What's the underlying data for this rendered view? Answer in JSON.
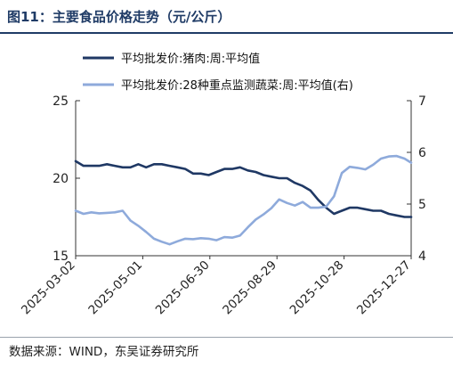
{
  "title": "图11：主要食品价格走势（元/公斤）",
  "source": "数据来源：WIND，东吴证券研究所",
  "chart_data": {
    "type": "line",
    "x_ticks": [
      "2025-03-02",
      "2025-05-01",
      "2025-06-30",
      "2025-08-29",
      "2025-10-28",
      "2025-12-27"
    ],
    "x_range": [
      "2025-03-02",
      "2025-12-27"
    ],
    "ylim": [
      15,
      25
    ],
    "yticks": [
      15,
      20,
      25
    ],
    "y2lim": [
      4,
      7
    ],
    "y2ticks": [
      4,
      5,
      6,
      7
    ],
    "legend_position": "top",
    "grid": false,
    "series": [
      {
        "name": "平均批发价:猪肉:周:平均值",
        "axis": "left",
        "color": "#1f3864",
        "x": [
          "2025-03-02",
          "2025-03-09",
          "2025-03-16",
          "2025-03-23",
          "2025-03-30",
          "2025-04-06",
          "2025-04-13",
          "2025-04-20",
          "2025-04-27",
          "2025-05-04",
          "2025-05-11",
          "2025-05-18",
          "2025-05-25",
          "2025-06-01",
          "2025-06-08",
          "2025-06-15",
          "2025-06-22",
          "2025-06-29",
          "2025-07-06",
          "2025-07-13",
          "2025-07-20",
          "2025-07-27",
          "2025-08-03",
          "2025-08-10",
          "2025-08-17",
          "2025-08-24",
          "2025-08-31",
          "2025-09-07",
          "2025-09-14",
          "2025-09-21",
          "2025-09-28",
          "2025-10-05",
          "2025-10-12",
          "2025-10-19",
          "2025-10-26",
          "2025-11-02",
          "2025-11-09",
          "2025-11-16",
          "2025-11-23",
          "2025-11-30",
          "2025-12-07",
          "2025-12-14",
          "2025-12-21",
          "2025-12-27"
        ],
        "y": [
          21.1,
          20.8,
          20.8,
          20.8,
          20.9,
          20.8,
          20.7,
          20.7,
          20.9,
          20.7,
          20.9,
          20.9,
          20.8,
          20.7,
          20.6,
          20.3,
          20.3,
          20.2,
          20.4,
          20.6,
          20.6,
          20.7,
          20.5,
          20.4,
          20.2,
          20.1,
          20.0,
          20.0,
          19.7,
          19.5,
          19.2,
          18.6,
          18.1,
          17.7,
          17.9,
          18.1,
          18.1,
          18.0,
          17.9,
          17.9,
          17.7,
          17.6,
          17.5,
          17.5
        ]
      },
      {
        "name": "平均批发价:28种重点监测蔬菜:周:平均值(右)",
        "axis": "right",
        "color": "#8eaadb",
        "x": [
          "2025-03-02",
          "2025-03-09",
          "2025-03-16",
          "2025-03-23",
          "2025-03-30",
          "2025-04-06",
          "2025-04-13",
          "2025-04-20",
          "2025-04-27",
          "2025-05-04",
          "2025-05-11",
          "2025-05-18",
          "2025-05-25",
          "2025-06-01",
          "2025-06-08",
          "2025-06-15",
          "2025-06-22",
          "2025-06-29",
          "2025-07-06",
          "2025-07-13",
          "2025-07-20",
          "2025-07-27",
          "2025-08-03",
          "2025-08-10",
          "2025-08-17",
          "2025-08-24",
          "2025-08-31",
          "2025-09-07",
          "2025-09-14",
          "2025-09-21",
          "2025-09-28",
          "2025-10-05",
          "2025-10-12",
          "2025-10-19",
          "2025-10-26",
          "2025-11-02",
          "2025-11-09",
          "2025-11-16",
          "2025-11-23",
          "2025-11-30",
          "2025-12-07",
          "2025-12-14",
          "2025-12-21",
          "2025-12-27"
        ],
        "y": [
          4.87,
          4.81,
          4.84,
          4.82,
          4.83,
          4.84,
          4.87,
          4.68,
          4.58,
          4.46,
          4.33,
          4.27,
          4.22,
          4.28,
          4.33,
          4.32,
          4.34,
          4.33,
          4.3,
          4.36,
          4.35,
          4.39,
          4.55,
          4.7,
          4.8,
          4.92,
          5.09,
          5.02,
          4.97,
          5.04,
          4.93,
          4.93,
          4.95,
          5.15,
          5.6,
          5.72,
          5.7,
          5.67,
          5.76,
          5.88,
          5.92,
          5.93,
          5.88,
          5.8
        ]
      }
    ]
  }
}
